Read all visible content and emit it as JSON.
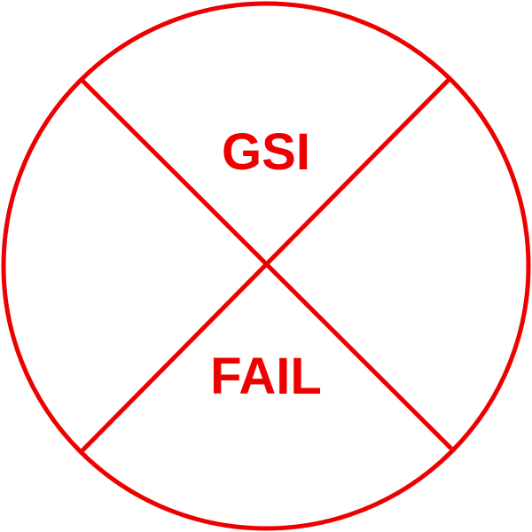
{
  "stamp": {
    "top_label": "GSI",
    "bottom_label": "FAIL",
    "color": "#ee0000",
    "shape": "circle-with-x"
  }
}
